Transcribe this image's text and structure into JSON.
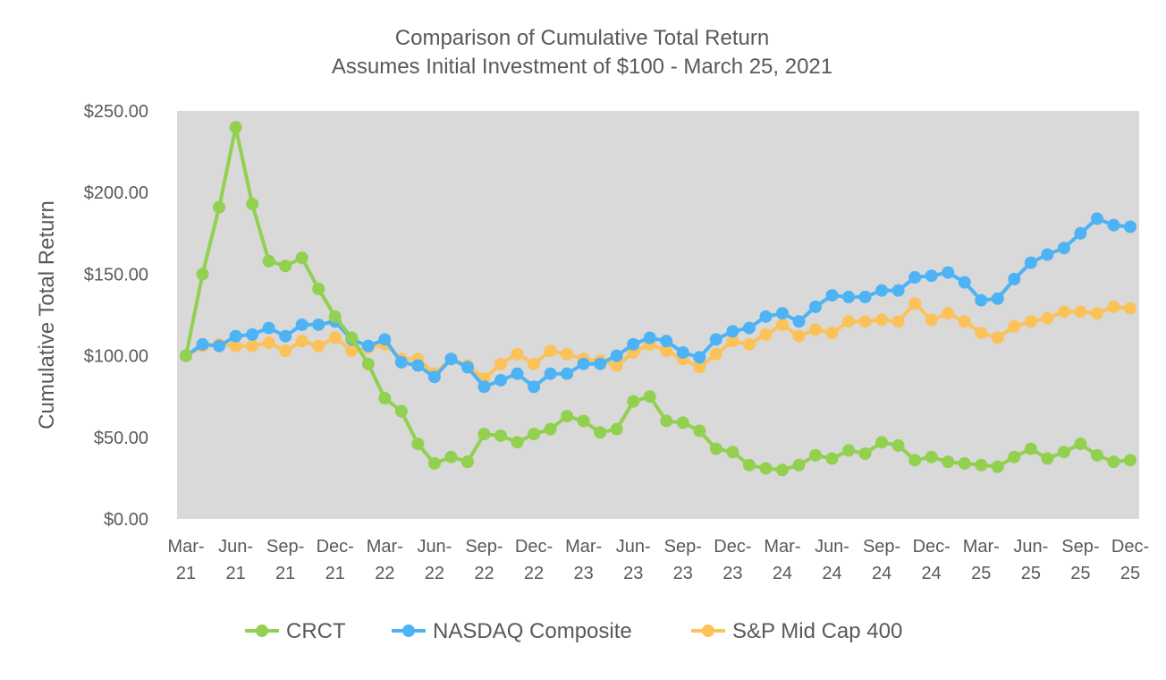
{
  "chart_data": {
    "type": "line",
    "title": "Comparison of Cumulative Total Return",
    "subtitle": "Assumes Initial Investment of $100 - March 25, 2021",
    "ylabel": "Cumulative Total Return",
    "xlabel": "",
    "ylim": [
      0,
      250
    ],
    "yticks": [
      "$0.00",
      "$50.00",
      "$100.00",
      "$150.00",
      "$200.00",
      "$250.00"
    ],
    "ytick_values": [
      0,
      50,
      100,
      150,
      200,
      250
    ],
    "grid": false,
    "legend_position": "bottom",
    "xtick_labels": [
      [
        "Mar-",
        "21"
      ],
      [
        "Jun-",
        "21"
      ],
      [
        "Sep-",
        "21"
      ],
      [
        "Dec-",
        "21"
      ],
      [
        "Mar-",
        "22"
      ],
      [
        "Jun-",
        "22"
      ],
      [
        "Sep-",
        "22"
      ],
      [
        "Dec-",
        "22"
      ],
      [
        "Mar-",
        "23"
      ],
      [
        "Jun-",
        "23"
      ],
      [
        "Sep-",
        "23"
      ],
      [
        "Dec-",
        "23"
      ],
      [
        "Mar-",
        "24"
      ],
      [
        "Jun-",
        "24"
      ],
      [
        "Sep-",
        "24"
      ],
      [
        "Dec-",
        "24"
      ],
      [
        "Mar-",
        "25"
      ],
      [
        "Jun-",
        "25"
      ],
      [
        "Sep-",
        "25"
      ],
      [
        "Dec-",
        "25"
      ]
    ],
    "x": [
      "Mar-21",
      "Apr-21",
      "May-21",
      "Jun-21",
      "Jul-21",
      "Aug-21",
      "Sep-21",
      "Oct-21",
      "Nov-21",
      "Dec-21",
      "Jan-22",
      "Feb-22",
      "Mar-22",
      "Apr-22",
      "May-22",
      "Jun-22",
      "Jul-22",
      "Aug-22",
      "Sep-22",
      "Oct-22",
      "Nov-22",
      "Dec-22",
      "Jan-23",
      "Feb-23",
      "Mar-23",
      "Apr-23",
      "May-23",
      "Jun-23",
      "Jul-23",
      "Aug-23",
      "Sep-23",
      "Oct-23",
      "Nov-23",
      "Dec-23",
      "Jan-24",
      "Feb-24",
      "Mar-24",
      "Apr-24",
      "May-24",
      "Jun-24",
      "Jul-24",
      "Aug-24",
      "Sep-24",
      "Oct-24",
      "Nov-24",
      "Dec-24",
      "Jan-25",
      "Feb-25",
      "Mar-25",
      "Apr-25",
      "May-25",
      "Jun-25",
      "Jul-25",
      "Aug-25",
      "Sep-25",
      "Oct-25",
      "Nov-25",
      "Dec-25"
    ],
    "series": [
      {
        "name": "CRCT",
        "color": "#92d050",
        "values": [
          100,
          150,
          191,
          240,
          193,
          158,
          155,
          160,
          141,
          124,
          111,
          95,
          74,
          66,
          46,
          34,
          38,
          35,
          52,
          51,
          47,
          52,
          55,
          63,
          60,
          53,
          55,
          72,
          75,
          60,
          59,
          54,
          43,
          41,
          33,
          31,
          30,
          33,
          39,
          37,
          42,
          40,
          47,
          45,
          36,
          38,
          35,
          34,
          33,
          32,
          38,
          43,
          37,
          41,
          46,
          39,
          35,
          36
        ]
      },
      {
        "name": "NASDAQ Composite",
        "color": "#4db3f5",
        "values": [
          100,
          107,
          106,
          112,
          113,
          117,
          112,
          119,
          119,
          121,
          110,
          106,
          110,
          96,
          94,
          87,
          98,
          93,
          81,
          85,
          89,
          81,
          89,
          89,
          95,
          95,
          100,
          107,
          111,
          109,
          102,
          99,
          110,
          115,
          117,
          124,
          126,
          121,
          130,
          137,
          136,
          136,
          140,
          140,
          148,
          149,
          151,
          145,
          134,
          135,
          147,
          157,
          162,
          166,
          175,
          184,
          180,
          179
        ]
      },
      {
        "name": "S&P Mid Cap 400",
        "color": "#fbc25a",
        "values": [
          100,
          106,
          107,
          106,
          106,
          108,
          103,
          109,
          106,
          111,
          103,
          105,
          107,
          98,
          98,
          89,
          98,
          94,
          86,
          95,
          101,
          95,
          103,
          101,
          98,
          97,
          94,
          102,
          107,
          103,
          98,
          93,
          101,
          109,
          107,
          113,
          119,
          112,
          116,
          114,
          121,
          121,
          122,
          121,
          132,
          122,
          126,
          121,
          114,
          111,
          118,
          121,
          123,
          127,
          127,
          126,
          130,
          129
        ]
      }
    ]
  }
}
